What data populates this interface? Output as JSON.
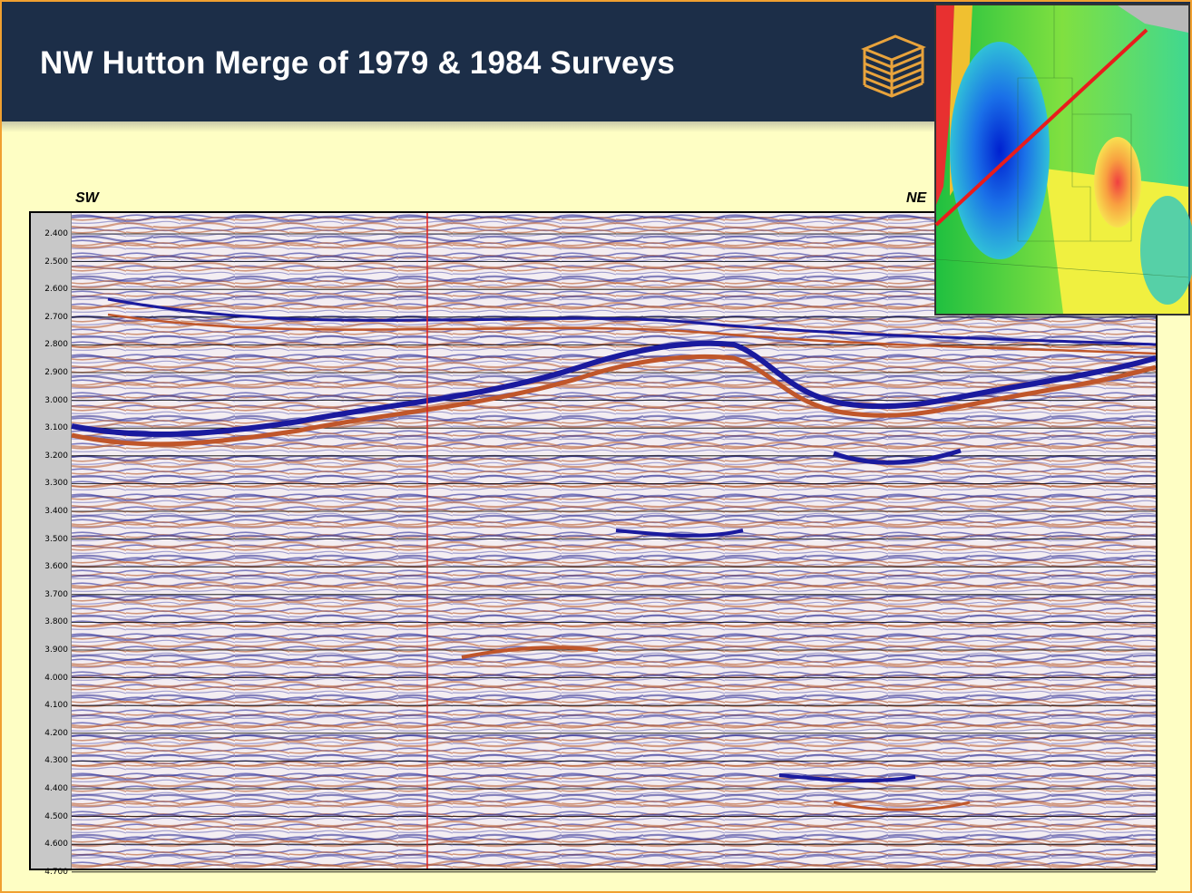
{
  "header": {
    "title": "NW Hutton Merge of 1979 & 1984 Surveys",
    "background": "#1c2e48",
    "logo_icon": "stacked-cube-logo-icon"
  },
  "section": {
    "left_direction": "SW",
    "right_direction": "NE",
    "time_labels": [
      "2.400",
      "2.500",
      "2.600",
      "2.700",
      "2.800",
      "2.900",
      "3.000",
      "3.100",
      "3.200",
      "3.300",
      "3.400",
      "3.500",
      "3.600",
      "3.700",
      "3.800",
      "3.900",
      "4.000",
      "4.100",
      "4.200",
      "4.300",
      "4.400",
      "4.500",
      "4.600",
      "4.700"
    ],
    "positive_color": "#1a1a9e",
    "negative_color": "#c0562a",
    "marker_color": "#e02020"
  },
  "inset_map": {
    "icon": "location-map-icon",
    "line_color": "#e81c1c"
  }
}
